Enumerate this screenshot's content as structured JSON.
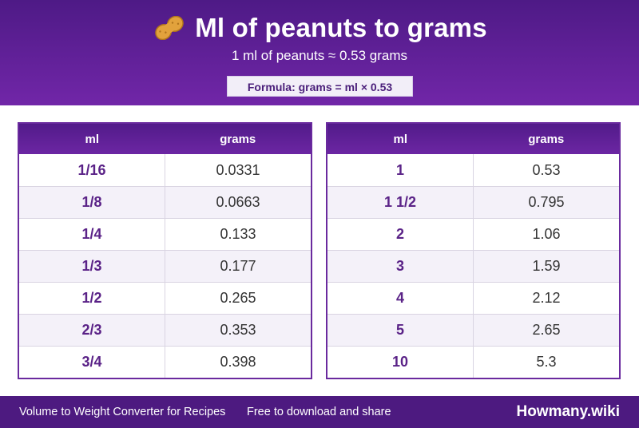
{
  "header": {
    "icon": "peanut-icon",
    "title": "Ml of peanuts to grams",
    "subtitle": "1 ml of peanuts ≈ 0.53 grams",
    "formula": "Formula: grams = ml × 0.53"
  },
  "tables": [
    {
      "col_ml": "ml",
      "col_grams": "grams",
      "rows": [
        {
          "ml": "1/16",
          "grams": "0.0331"
        },
        {
          "ml": "1/8",
          "grams": "0.0663"
        },
        {
          "ml": "1/4",
          "grams": "0.133"
        },
        {
          "ml": "1/3",
          "grams": "0.177"
        },
        {
          "ml": "1/2",
          "grams": "0.265"
        },
        {
          "ml": "2/3",
          "grams": "0.353"
        },
        {
          "ml": "3/4",
          "grams": "0.398"
        }
      ]
    },
    {
      "col_ml": "ml",
      "col_grams": "grams",
      "rows": [
        {
          "ml": "1",
          "grams": "0.53"
        },
        {
          "ml": "1 1/2",
          "grams": "0.795"
        },
        {
          "ml": "2",
          "grams": "1.06"
        },
        {
          "ml": "3",
          "grams": "1.59"
        },
        {
          "ml": "4",
          "grams": "2.12"
        },
        {
          "ml": "5",
          "grams": "2.65"
        },
        {
          "ml": "10",
          "grams": "5.3"
        }
      ]
    }
  ],
  "footer": {
    "left_text": "Volume to Weight Converter for Recipes",
    "mid_text": "Free to download and share",
    "brand": "Howmany.wiki"
  },
  "colors": {
    "header_purple": "#5a1f91",
    "accent_text": "#5a2287",
    "footer_purple": "#4d1a80"
  }
}
